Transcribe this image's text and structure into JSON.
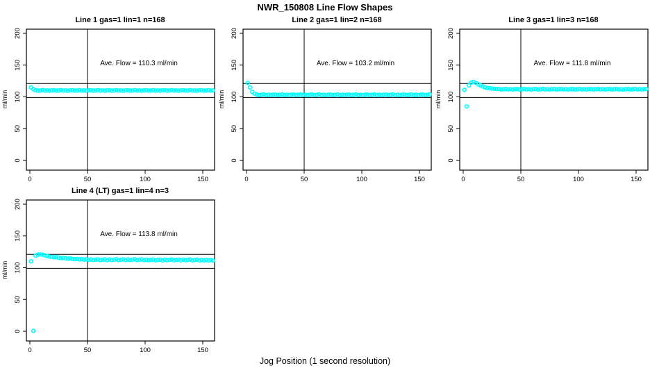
{
  "page": {
    "title": "NWR_150808  Line Flow Shapes",
    "xlabel": "Jog Position (1 second resolution)",
    "background": "#ffffff",
    "point_color": "#00ffff",
    "line_color": "#000000"
  },
  "chart_data": [
    {
      "type": "scatter",
      "title": "Line 1 gas=1 lin=1 n=168",
      "annotation": "Ave. Flow =  110.3  ml/min",
      "ave_flow": 110.3,
      "n": 168,
      "ylabel": "ml/min",
      "yticks": [
        0,
        50,
        100,
        150,
        200
      ],
      "xticks": [
        0,
        50,
        100,
        150
      ],
      "ylim": [
        0,
        200
      ],
      "xlim": [
        0,
        160
      ],
      "hlines": [
        99,
        121
      ],
      "vline": 50,
      "x_start": 1,
      "x_step": 2,
      "y": [
        115,
        112,
        110.4,
        109.8,
        110.1,
        110.6,
        109.9,
        110.2,
        109.7,
        110.3,
        110.4,
        109.8,
        110.1,
        110.6,
        109.9,
        110.2,
        109.7,
        110.3,
        110.4,
        109.8,
        110.1,
        110.6,
        109.9,
        110.2,
        109.7,
        110.3,
        110.4,
        109.8,
        110.1,
        110.6,
        109.9,
        110.2,
        109.7,
        110.3,
        110.4,
        109.8,
        110.1,
        110.6,
        109.9,
        110.2,
        109.7,
        110.3,
        110.4,
        109.8,
        110.1,
        110.6,
        109.9,
        110.2,
        109.7,
        110.3,
        110.4,
        109.8,
        110.1,
        110.6,
        109.9,
        110.2,
        109.7,
        110.3,
        110.4,
        109.8,
        110.1,
        110.6,
        109.9,
        110.2,
        109.7,
        110.3,
        110.4,
        109.8,
        110.1,
        110.6,
        109.9,
        110.2,
        109.7,
        110.3,
        110.4,
        109.8,
        110.1,
        110.6,
        109.9,
        110.2
      ]
    },
    {
      "type": "scatter",
      "title": "Line 2 gas=1 lin=2 n=168",
      "annotation": "Ave. Flow =  103.2  ml/min",
      "ave_flow": 103.2,
      "n": 168,
      "ylabel": "ml/min",
      "yticks": [
        0,
        50,
        100,
        150,
        200
      ],
      "xticks": [
        0,
        50,
        100,
        150
      ],
      "ylim": [
        0,
        200
      ],
      "xlim": [
        0,
        160
      ],
      "hlines": [
        99,
        121
      ],
      "vline": 50,
      "x_start": 1,
      "x_step": 2,
      "y": [
        122,
        115,
        108,
        105,
        103.6,
        102.9,
        103.3,
        103.8,
        103.0,
        103.4,
        102.8,
        103.5,
        103.6,
        102.9,
        103.3,
        103.8,
        103.0,
        103.4,
        102.8,
        103.5,
        103.6,
        102.9,
        103.3,
        103.8,
        103.0,
        103.4,
        102.8,
        103.5,
        103.6,
        102.9,
        103.3,
        103.8,
        103.0,
        103.4,
        102.8,
        103.5,
        103.6,
        102.9,
        103.3,
        103.8,
        103.0,
        103.4,
        102.8,
        103.5,
        103.6,
        102.9,
        103.3,
        103.8,
        103.0,
        103.4,
        102.8,
        103.5,
        103.6,
        102.9,
        103.3,
        103.8,
        103.0,
        103.4,
        102.8,
        103.5,
        103.6,
        102.9,
        103.3,
        103.8,
        103.0,
        103.4,
        102.8,
        103.5,
        103.6,
        102.9,
        103.3,
        103.8,
        103.0,
        103.4,
        102.8,
        103.5,
        103.6,
        102.9,
        103.3,
        103.8
      ]
    },
    {
      "type": "scatter",
      "title": "Line 3 gas=1 lin=3 n=168",
      "annotation": "Ave. Flow =  111.8  ml/min",
      "ave_flow": 111.8,
      "n": 168,
      "ylabel": "ml/min",
      "yticks": [
        0,
        50,
        100,
        150,
        200
      ],
      "xticks": [
        0,
        50,
        100,
        150
      ],
      "ylim": [
        0,
        200
      ],
      "xlim": [
        0,
        160
      ],
      "hlines": [
        99,
        121
      ],
      "vline": 50,
      "x_start": 1,
      "x_step": 2,
      "y": [
        111,
        85,
        118,
        122.5,
        123.5,
        122,
        120,
        118,
        116.5,
        115,
        114,
        113.5,
        113,
        112.8,
        112.5,
        112.3,
        111.7,
        112.0,
        112.5,
        111.8,
        112.1,
        111.6,
        112.2,
        112.3,
        111.7,
        112.0,
        112.5,
        111.8,
        112.1,
        111.6,
        112.2,
        112.3,
        111.7,
        112.0,
        112.5,
        111.8,
        112.1,
        111.6,
        112.2,
        112.3,
        111.7,
        112.0,
        112.5,
        111.8,
        112.1,
        111.6,
        112.2,
        112.3,
        111.7,
        112.0,
        112.5,
        111.8,
        112.1,
        111.6,
        112.2,
        112.3,
        111.7,
        112.0,
        112.5,
        111.8,
        112.1,
        111.6,
        112.2,
        112.3,
        111.7,
        112.0,
        112.5,
        111.8,
        112.1,
        111.6,
        112.2,
        112.3,
        111.7,
        112.0,
        112.5,
        111.8,
        112.1,
        111.6,
        112.2,
        112.3
      ]
    },
    {
      "type": "scatter",
      "title": "Line 4 (LT) gas=1 lin=4 n=3",
      "annotation": "Ave. Flow =  113.8  ml/min",
      "ave_flow": 113.8,
      "n": 3,
      "ylabel": "ml/min",
      "yticks": [
        0,
        50,
        100,
        150,
        200
      ],
      "xticks": [
        0,
        50,
        100,
        150
      ],
      "ylim": [
        0,
        200
      ],
      "xlim": [
        0,
        160
      ],
      "hlines": [
        99,
        121
      ],
      "vline": 50,
      "x_start": 1,
      "x_step": 2,
      "y": [
        110,
        0.5,
        119,
        120.5,
        121,
        120.5,
        119.5,
        118.5,
        117.5,
        117,
        116.5,
        116.8,
        115.8,
        115.2,
        115.5,
        114.8,
        114.2,
        114.6,
        113.9,
        113.4,
        113.8,
        113.1,
        113.5,
        112.8,
        113.3,
        112.6,
        113.0,
        112.2,
        112.7,
        113.3,
        112.0,
        112.6,
        113.1,
        111.9,
        113.0,
        112.2,
        112.7,
        113.3,
        112.0,
        112.6,
        113.1,
        111.9,
        113.0,
        112.2,
        112.7,
        113.3,
        112.0,
        112.6,
        113.1,
        111.9,
        112.6,
        111.8,
        112.3,
        112.9,
        111.6,
        112.2,
        112.7,
        111.5,
        112.6,
        111.8,
        112.3,
        112.9,
        111.6,
        112.2,
        112.7,
        111.5,
        112.6,
        111.8,
        112.3,
        112.9,
        111.6,
        112.2,
        112.7,
        111.5,
        112.2,
        111.6,
        112.1,
        111.4,
        111.9,
        111.3
      ]
    }
  ]
}
